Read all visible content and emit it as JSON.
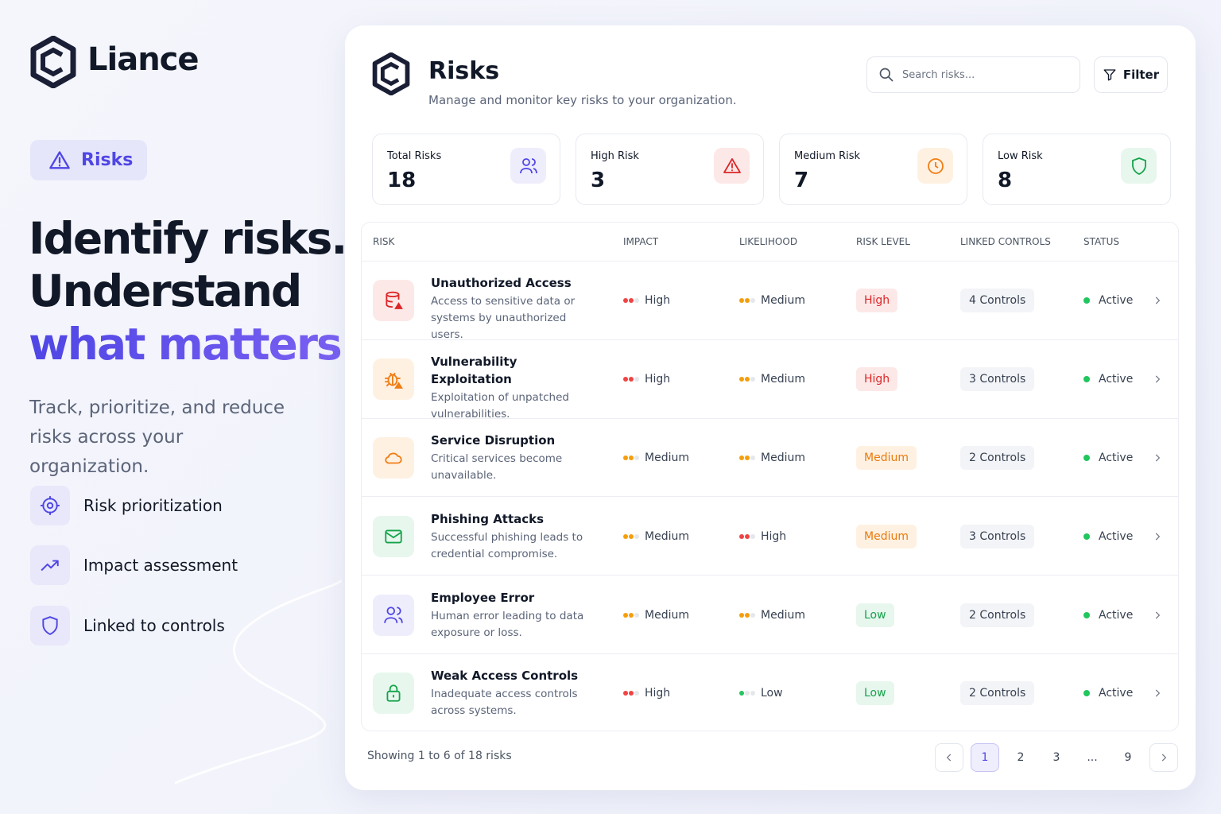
{
  "brand": "Liance",
  "hero": {
    "badge": "Risks",
    "headline": [
      "Identify risks.",
      "Understand"
    ],
    "highlight": "what matters.",
    "subtitle": "Track, prioritize, and reduce risks across your organization.",
    "features": [
      "Risk prioritization",
      "Impact assessment",
      "Linked to controls"
    ]
  },
  "header": {
    "title": "Risks",
    "subtitle": "Manage and monitor key risks to your organization.",
    "search_placeholder": "Search risks...",
    "filter": "Filter"
  },
  "stats": [
    {
      "label": "Total Risks",
      "value": 18
    },
    {
      "label": "High Risk",
      "value": 3
    },
    {
      "label": "Medium Risk",
      "value": 7
    },
    {
      "label": "Low Risk",
      "value": 8
    }
  ],
  "table": {
    "columns": [
      "RISK",
      "IMPACT",
      "LIKELIHOOD",
      "RISK LEVEL",
      "LINKED CONTROLS",
      "STATUS"
    ],
    "rows": [
      {
        "title": "Unauthorized Access",
        "description": "Access to sensitive data or systems by unauthorized users.",
        "impact": "High",
        "likelihood": "Medium",
        "level": "High",
        "controls": "4 Controls",
        "status": "Active"
      },
      {
        "title": "Vulnerability Exploitation",
        "description": "Exploitation of unpatched vulnerabilities.",
        "impact": "High",
        "likelihood": "Medium",
        "level": "High",
        "controls": "3 Controls",
        "status": "Active"
      },
      {
        "title": "Service Disruption",
        "description": "Critical services become unavailable.",
        "impact": "Medium",
        "likelihood": "Medium",
        "level": "Medium",
        "controls": "2 Controls",
        "status": "Active"
      },
      {
        "title": "Phishing Attacks",
        "description": "Successful phishing leads to credential compromise.",
        "impact": "Medium",
        "likelihood": "High",
        "level": "Medium",
        "controls": "3 Controls",
        "status": "Active"
      },
      {
        "title": "Employee Error",
        "description": "Human error leading to data exposure or loss.",
        "impact": "Medium",
        "likelihood": "Medium",
        "level": "Low",
        "controls": "2 Controls",
        "status": "Active"
      },
      {
        "title": "Weak Access Controls",
        "description": "Inadequate access controls across systems.",
        "impact": "High",
        "likelihood": "Low",
        "level": "Low",
        "controls": "2 Controls",
        "status": "Active"
      }
    ]
  },
  "footer": {
    "summary": "Showing 1 to 6 of 18 risks",
    "pages": [
      "1",
      "2",
      "3",
      "...",
      "9"
    ]
  }
}
